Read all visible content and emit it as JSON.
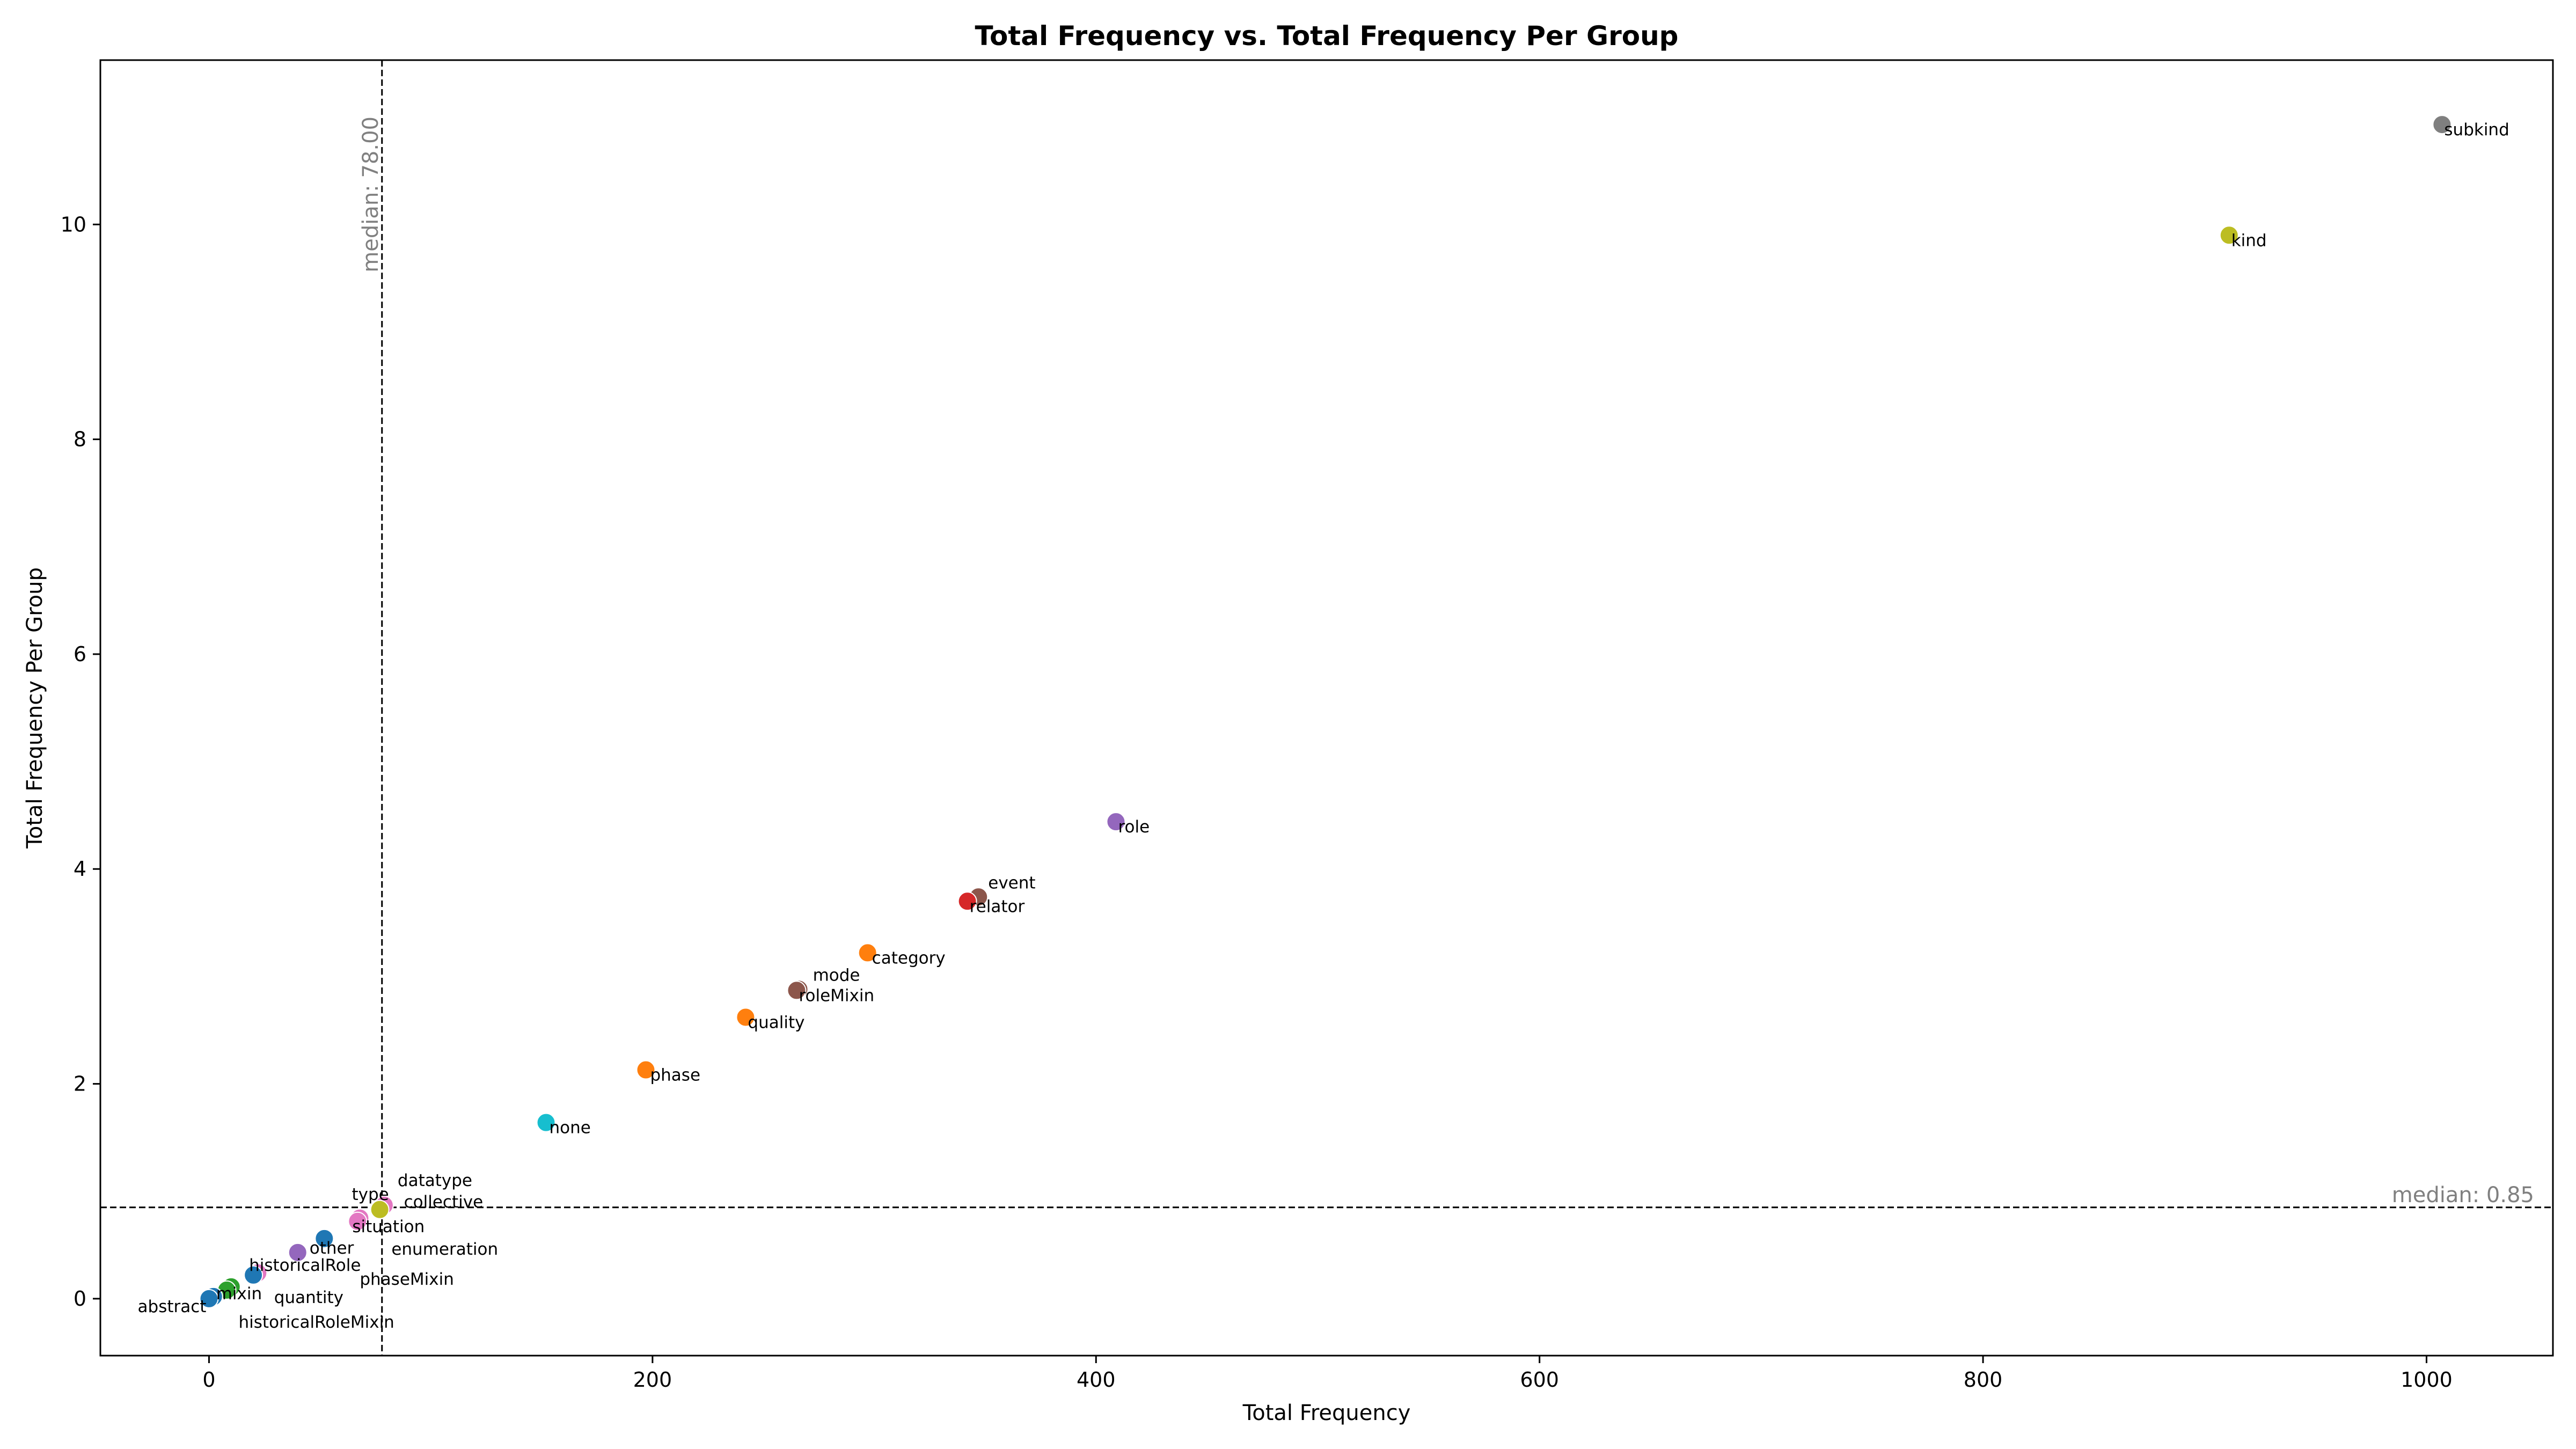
{
  "chart_data": {
    "type": "scatter",
    "title": "Total Frequency vs. Total Frequency Per Group",
    "xlabel": "Total Frequency",
    "ylabel": "Total Frequency Per Group",
    "xlim": [
      -49,
      1057
    ],
    "ylim": [
      -0.53,
      11.53
    ],
    "xticks": [
      0,
      200,
      400,
      600,
      800,
      1000
    ],
    "yticks": [
      0,
      2,
      4,
      6,
      8,
      10
    ],
    "grid": false,
    "median_x": {
      "value": 78,
      "label": "median: 78.00"
    },
    "median_y": {
      "value": 0.85,
      "label": "median: 0.85"
    },
    "points": [
      {
        "label": "subkind",
        "x": 1007,
        "y": 10.93,
        "color": "#7f7f7f"
      },
      {
        "label": "kind",
        "x": 911,
        "y": 9.9,
        "color": "#bcbd22"
      },
      {
        "label": "role",
        "x": 409,
        "y": 4.44,
        "color": "#9467bd"
      },
      {
        "label": "event",
        "x": 347,
        "y": 3.74,
        "color": "#8c564b"
      },
      {
        "label": "relator",
        "x": 342,
        "y": 3.7,
        "color": "#d62728"
      },
      {
        "label": "category",
        "x": 297,
        "y": 3.22,
        "color": "#ff7f0e"
      },
      {
        "label": "mode",
        "x": 266,
        "y": 2.88,
        "color": "#8c564b"
      },
      {
        "label": "roleMixin",
        "x": 265,
        "y": 2.87,
        "color": "#8c564b"
      },
      {
        "label": "quality",
        "x": 242,
        "y": 2.62,
        "color": "#ff7f0e"
      },
      {
        "label": "phase",
        "x": 197,
        "y": 2.13,
        "color": "#ff7f0e"
      },
      {
        "label": "none",
        "x": 152,
        "y": 1.64,
        "color": "#17becf"
      },
      {
        "label": "datatype",
        "x": 79,
        "y": 0.87,
        "color": "#e377c2"
      },
      {
        "label": "collective",
        "x": 77,
        "y": 0.83,
        "color": "#bcbd22"
      },
      {
        "label": "type",
        "x": 68,
        "y": 0.75,
        "color": "#e377c2"
      },
      {
        "label": "situation",
        "x": 67,
        "y": 0.72,
        "color": "#e377c2"
      },
      {
        "label": "enumeration",
        "x": 52,
        "y": 0.56,
        "color": "#1f77b4"
      },
      {
        "label": "other",
        "x": 40,
        "y": 0.43,
        "color": "#9467bd"
      },
      {
        "label": "phaseMixin",
        "x": 22,
        "y": 0.24,
        "color": "#e377c2"
      },
      {
        "label": "historicalRole",
        "x": 20,
        "y": 0.22,
        "color": "#1f77b4"
      },
      {
        "label": "quantity",
        "x": 10,
        "y": 0.11,
        "color": "#2ca02c"
      },
      {
        "label": "historicalRoleMixin",
        "x": 8,
        "y": 0.08,
        "color": "#2ca02c"
      },
      {
        "label": "mixin",
        "x": 2,
        "y": 0.02,
        "color": "#1f77b4"
      },
      {
        "label": "abstract",
        "x": 0,
        "y": 0.0,
        "color": "#1f77b4"
      }
    ]
  }
}
